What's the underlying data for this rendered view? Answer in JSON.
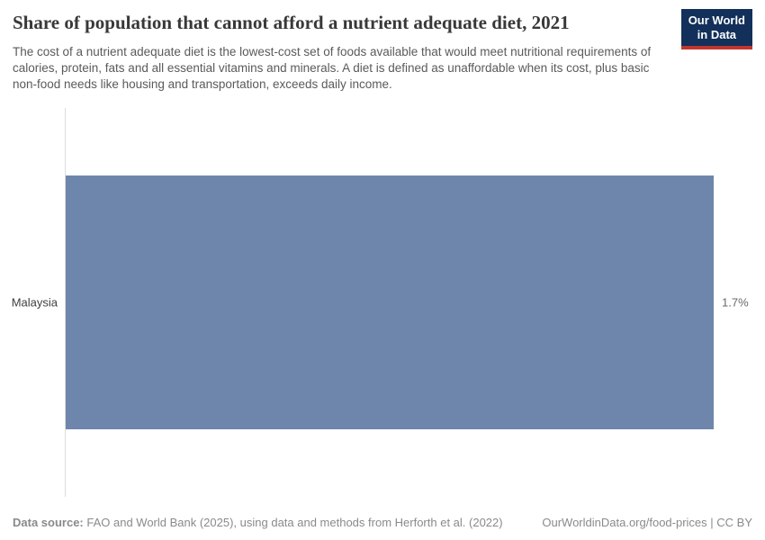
{
  "header": {
    "title": "Share of population that cannot afford a nutrient adequate diet, 2021",
    "subtitle": "The cost of a nutrient adequate diet is the lowest-cost set of foods available that would meet nutritional requirements of calories, protein, fats and all essential vitamins and minerals. A diet is defined as unaffordable when its cost, plus basic non-food needs like housing and transportation, exceeds daily income.",
    "logo": {
      "line1": "Our World",
      "line2": "in Data",
      "bg_color": "#12305a",
      "accent_color": "#c0362f"
    }
  },
  "chart_data": {
    "type": "bar",
    "orientation": "horizontal",
    "categories": [
      "Malaysia"
    ],
    "values": [
      1.7
    ],
    "value_labels": [
      "1.7%"
    ],
    "title": "Share of population that cannot afford a nutrient adequate diet, 2021",
    "xlabel": "",
    "ylabel": "",
    "xlim": [
      0,
      1.7
    ],
    "grid": false,
    "legend": "none",
    "bar_color": "#6e86ac",
    "axis_line_color": "#dcdcdc"
  },
  "footer": {
    "source_label": "Data source:",
    "source_text": " FAO and World Bank (2025), using data and methods from Herforth et al. (2022)",
    "link_text": "OurWorldinData.org/food-prices | CC BY"
  }
}
